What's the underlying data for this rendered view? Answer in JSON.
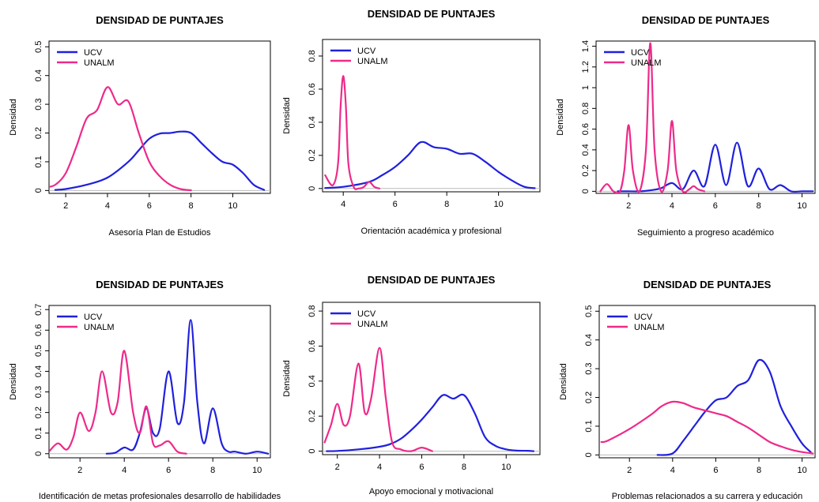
{
  "colors": {
    "UCV": "#2020dd",
    "UNALM": "#ee2a8a",
    "axis": "#000000",
    "baseline": "#bbbbbb"
  },
  "chart_data": [
    {
      "type": "line",
      "title": "DENSIDAD DE PUNTAJES",
      "xlabel": "Asesoría Plan de Estudios",
      "ylabel": "Densidad",
      "xlim": [
        1.2,
        11.8
      ],
      "ylim": [
        -0.01,
        0.52
      ],
      "xticks": [
        2,
        4,
        6,
        8,
        10
      ],
      "yticks": [
        0,
        0.1,
        0.2,
        0.3,
        0.4,
        0.5
      ],
      "legend": "top-left",
      "series": [
        {
          "name": "UCV",
          "x": [
            1.5,
            2,
            3,
            4,
            5,
            5.5,
            6,
            6.5,
            7,
            7.5,
            8,
            8.5,
            9,
            9.5,
            10,
            10.5,
            11,
            11.5
          ],
          "y": [
            0.002,
            0.005,
            0.02,
            0.045,
            0.1,
            0.14,
            0.18,
            0.198,
            0.2,
            0.205,
            0.2,
            0.165,
            0.13,
            0.1,
            0.09,
            0.06,
            0.02,
            0.002
          ]
        },
        {
          "name": "UNALM",
          "x": [
            1,
            1.5,
            2,
            2.5,
            3,
            3.5,
            4,
            4.5,
            5,
            5.5,
            6,
            6.5,
            7,
            7.5,
            8
          ],
          "y": [
            0.01,
            0.02,
            0.06,
            0.15,
            0.25,
            0.28,
            0.36,
            0.3,
            0.31,
            0.2,
            0.1,
            0.05,
            0.02,
            0.005,
            0.001
          ]
        }
      ]
    },
    {
      "type": "line",
      "title": "DENSIDAD DE PUNTAJES",
      "xlabel": "Orientación académica y profesional",
      "ylabel": "Densidad",
      "xlim": [
        3.2,
        11.6
      ],
      "ylim": [
        -0.02,
        0.9
      ],
      "xticks": [
        4,
        6,
        8,
        10
      ],
      "yticks": [
        0,
        0.2,
        0.4,
        0.6,
        0.8
      ],
      "legend": "top-left",
      "series": [
        {
          "name": "UCV",
          "x": [
            3.3,
            4,
            5,
            5.5,
            6,
            6.5,
            7,
            7.5,
            8,
            8.5,
            9,
            9.5,
            10,
            10.5,
            11,
            11.4
          ],
          "y": [
            0.003,
            0.01,
            0.04,
            0.08,
            0.13,
            0.2,
            0.28,
            0.25,
            0.24,
            0.21,
            0.21,
            0.16,
            0.1,
            0.05,
            0.01,
            0.002
          ]
        },
        {
          "name": "UNALM",
          "x": [
            3.3,
            3.6,
            3.8,
            3.9,
            4,
            4.1,
            4.2,
            4.4,
            4.6,
            4.8,
            5,
            5.2,
            5.4
          ],
          "y": [
            0.08,
            0.02,
            0.15,
            0.5,
            0.68,
            0.5,
            0.15,
            0.01,
            0.0,
            0.01,
            0.04,
            0.01,
            0.0
          ]
        }
      ]
    },
    {
      "type": "line",
      "title": "DENSIDAD DE PUNTAJES",
      "xlabel": "Seguimiento a progreso académico",
      "ylabel": "Densidad",
      "xlim": [
        0.5,
        10.6
      ],
      "ylim": [
        -0.02,
        1.45
      ],
      "xticks": [
        2,
        4,
        6,
        8,
        10
      ],
      "yticks": [
        0,
        0.2,
        0.4,
        0.6,
        0.8,
        1.0,
        1.2,
        1.4
      ],
      "legend": "top-left",
      "series": [
        {
          "name": "UCV",
          "x": [
            1.5,
            2,
            2.5,
            3,
            3.5,
            4,
            4.5,
            5,
            5.5,
            6,
            6.5,
            7,
            7.5,
            8,
            8.5,
            9,
            9.5,
            10,
            10.5
          ],
          "y": [
            0.0,
            0.0,
            0.0,
            0.01,
            0.03,
            0.08,
            0.02,
            0.2,
            0.05,
            0.45,
            0.06,
            0.47,
            0.05,
            0.22,
            0.02,
            0.06,
            0.0,
            0.0,
            0.0
          ]
        },
        {
          "name": "UNALM",
          "x": [
            0.7,
            1,
            1.3,
            1.6,
            1.8,
            2,
            2.2,
            2.5,
            2.8,
            3,
            3.2,
            3.5,
            3.8,
            4,
            4.2,
            4.5,
            4.8,
            5,
            5.2,
            5.5
          ],
          "y": [
            0.0,
            0.07,
            0.0,
            0.0,
            0.2,
            0.64,
            0.2,
            0.0,
            0.4,
            1.43,
            0.4,
            0.0,
            0.2,
            0.68,
            0.2,
            0.0,
            0.02,
            0.05,
            0.02,
            0.0
          ]
        }
      ]
    },
    {
      "type": "line",
      "title": "DENSIDAD DE PUNTAJES",
      "xlabel": "Identificación de metas profesionales desarrollo de habilidades",
      "ylabel": "Densidad",
      "xlim": [
        0.6,
        10.6
      ],
      "ylim": [
        -0.02,
        0.72
      ],
      "xticks": [
        2,
        4,
        6,
        8,
        10
      ],
      "yticks": [
        0,
        0.1,
        0.2,
        0.3,
        0.4,
        0.5,
        0.6,
        0.7
      ],
      "legend": "top-left",
      "series": [
        {
          "name": "UCV",
          "x": [
            3.2,
            3.6,
            4,
            4.4,
            4.7,
            5,
            5.3,
            5.6,
            6,
            6.4,
            6.7,
            7,
            7.3,
            7.6,
            8,
            8.4,
            8.7,
            9,
            9.5,
            10,
            10.5
          ],
          "y": [
            0.0,
            0.005,
            0.03,
            0.02,
            0.1,
            0.22,
            0.1,
            0.12,
            0.4,
            0.15,
            0.25,
            0.65,
            0.25,
            0.05,
            0.22,
            0.05,
            0.01,
            0.01,
            0.0,
            0.01,
            0.0
          ]
        },
        {
          "name": "UNALM",
          "x": [
            0.6,
            1,
            1.4,
            1.7,
            2,
            2.4,
            2.7,
            3,
            3.4,
            3.7,
            4,
            4.4,
            4.7,
            5,
            5.3,
            5.6,
            6,
            6.4,
            6.8
          ],
          "y": [
            0.01,
            0.05,
            0.02,
            0.08,
            0.2,
            0.11,
            0.2,
            0.4,
            0.2,
            0.25,
            0.5,
            0.2,
            0.1,
            0.23,
            0.05,
            0.04,
            0.06,
            0.01,
            0.0
          ]
        }
      ]
    },
    {
      "type": "line",
      "title": "DENSIDAD DE PUNTAJES",
      "xlabel": "Apoyo emocional y motivacional",
      "ylabel": "Densidad",
      "xlim": [
        1.3,
        11.6
      ],
      "ylim": [
        -0.02,
        0.85
      ],
      "xticks": [
        2,
        4,
        6,
        8,
        10
      ],
      "yticks": [
        0,
        0.2,
        0.4,
        0.6,
        0.8
      ],
      "legend": "top-left",
      "series": [
        {
          "name": "UCV",
          "x": [
            1.5,
            2,
            3,
            4,
            4.5,
            5,
            5.5,
            6,
            6.5,
            7,
            7.5,
            8,
            8.5,
            9,
            9.5,
            10,
            10.5,
            11,
            11.3
          ],
          "y": [
            0.0,
            0.001,
            0.01,
            0.025,
            0.04,
            0.07,
            0.12,
            0.18,
            0.25,
            0.32,
            0.3,
            0.32,
            0.22,
            0.08,
            0.03,
            0.01,
            0.003,
            0.002,
            0.0
          ]
        },
        {
          "name": "UNALM",
          "x": [
            1.4,
            1.7,
            2,
            2.3,
            2.6,
            3,
            3.3,
            3.6,
            4,
            4.3,
            4.6,
            5,
            5.5,
            6,
            6.5
          ],
          "y": [
            0.05,
            0.15,
            0.27,
            0.15,
            0.2,
            0.5,
            0.22,
            0.3,
            0.59,
            0.3,
            0.05,
            0.01,
            0.0,
            0.02,
            0.0
          ]
        }
      ]
    },
    {
      "type": "line",
      "title": "DENSIDAD DE PUNTAJES",
      "xlabel": "Problemas relacionados a su carrera y educación",
      "ylabel": "Densidad",
      "xlim": [
        0.6,
        10.6
      ],
      "ylim": [
        -0.01,
        0.52
      ],
      "xticks": [
        2,
        4,
        6,
        8,
        10
      ],
      "yticks": [
        0,
        0.1,
        0.2,
        0.3,
        0.4,
        0.5
      ],
      "legend": "top-left",
      "series": [
        {
          "name": "UCV",
          "x": [
            3.3,
            4,
            4.5,
            5,
            5.5,
            6,
            6.5,
            7,
            7.5,
            8,
            8.5,
            9,
            9.5,
            10,
            10.4
          ],
          "y": [
            0.0,
            0.005,
            0.05,
            0.1,
            0.15,
            0.19,
            0.2,
            0.24,
            0.26,
            0.33,
            0.29,
            0.17,
            0.1,
            0.04,
            0.01
          ]
        },
        {
          "name": "UNALM",
          "x": [
            0.7,
            1,
            2,
            3,
            3.5,
            4,
            4.5,
            5,
            6,
            6.5,
            7,
            7.5,
            8,
            8.5,
            9,
            9.5,
            10,
            10.5
          ],
          "y": [
            0.045,
            0.05,
            0.09,
            0.14,
            0.17,
            0.185,
            0.18,
            0.165,
            0.145,
            0.135,
            0.115,
            0.095,
            0.07,
            0.045,
            0.03,
            0.018,
            0.01,
            0.005
          ]
        }
      ]
    }
  ]
}
